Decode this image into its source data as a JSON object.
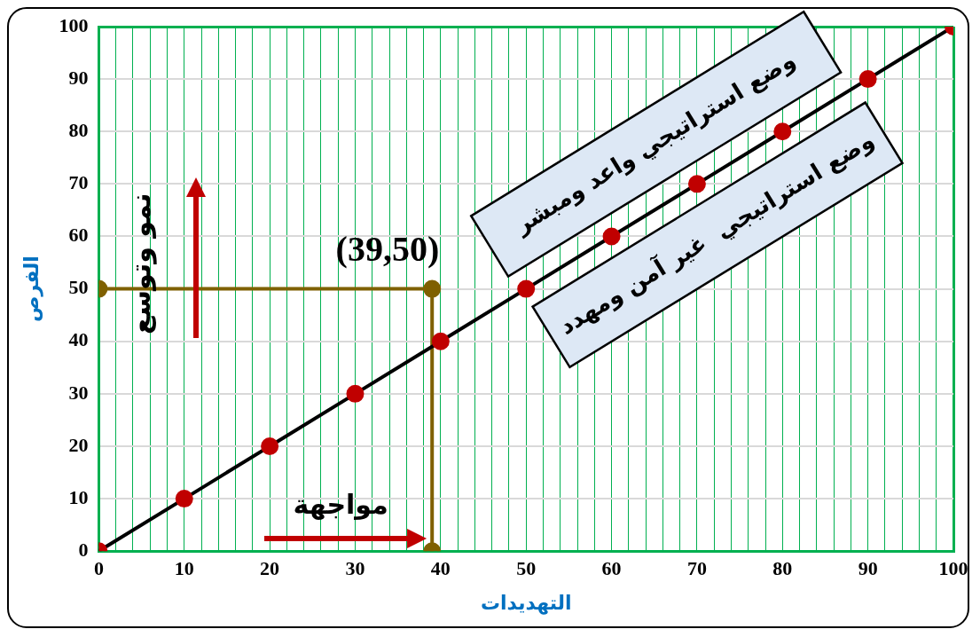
{
  "chart_data": {
    "type": "scatter",
    "xlabel": "التهديدات",
    "ylabel": "الفرص",
    "xlim": [
      0,
      100
    ],
    "ylim": [
      0,
      100
    ],
    "xticks": [
      0,
      {
        "value": 2,
        "label": null
      },
      {
        "value": 4,
        "label": null
      },
      {
        "value": 6,
        "label": null
      },
      {
        "value": 8,
        "label": null
      },
      10,
      {
        "value": 12,
        "label": null
      },
      {
        "value": 14,
        "label": null
      },
      {
        "value": 16,
        "label": null
      },
      {
        "value": 18,
        "label": null
      },
      20,
      {
        "value": 22,
        "label": null
      },
      {
        "value": 24,
        "label": null
      },
      {
        "value": 26,
        "label": null
      },
      {
        "value": 28,
        "label": null
      },
      30,
      {
        "value": 32,
        "label": null
      },
      {
        "value": 34,
        "label": null
      },
      {
        "value": 36,
        "label": null
      },
      {
        "value": 38,
        "label": null
      },
      40,
      {
        "value": 42,
        "label": null
      },
      {
        "value": 44,
        "label": null
      },
      {
        "value": 46,
        "label": null
      },
      {
        "value": 48,
        "label": null
      },
      50,
      {
        "value": 52,
        "label": null
      },
      {
        "value": 54,
        "label": null
      },
      {
        "value": 56,
        "label": null
      },
      {
        "value": 58,
        "label": null
      },
      60,
      {
        "value": 62,
        "label": null
      },
      {
        "value": 64,
        "label": null
      },
      {
        "value": 66,
        "label": null
      },
      {
        "value": 68,
        "label": null
      },
      70,
      {
        "value": 72,
        "label": null
      },
      {
        "value": 74,
        "label": null
      },
      {
        "value": 76,
        "label": null
      },
      {
        "value": 78,
        "label": null
      },
      80,
      {
        "value": 82,
        "label": null
      },
      {
        "value": 84,
        "label": null
      },
      {
        "value": 86,
        "label": null
      },
      {
        "value": 88,
        "label": null
      },
      90,
      {
        "value": 92,
        "label": null
      },
      {
        "value": 94,
        "label": null
      },
      {
        "value": 96,
        "label": null
      },
      {
        "value": 98,
        "label": null
      },
      100
    ],
    "yticks": [
      0,
      10,
      20,
      30,
      40,
      50,
      60,
      70,
      80,
      90,
      100
    ],
    "grid": true,
    "legend": false,
    "marker": "circle",
    "line_style": "solid",
    "series": [
      {
        "type": "line",
        "color": "#c00000",
        "x": [
          0,
          10,
          20,
          30,
          40,
          50,
          60,
          70,
          80,
          90,
          100
        ],
        "values": [
          0,
          10,
          20,
          30,
          40,
          50,
          60,
          70,
          80,
          90,
          100
        ]
      },
      {
        "type": "line",
        "color": "#7f6000",
        "x": [
          0,
          39,
          39
        ],
        "values": [
          50,
          50,
          0
        ]
      }
    ],
    "annotations": [
      {
        "text": "(39,50)",
        "x": 39,
        "y": 50
      },
      "وضع استراتيجي واعد ومبشر",
      "وضع استراتيجي  غير آمن ومهدد",
      "نمو وتوسع",
      "مواجهة"
    ]
  }
}
